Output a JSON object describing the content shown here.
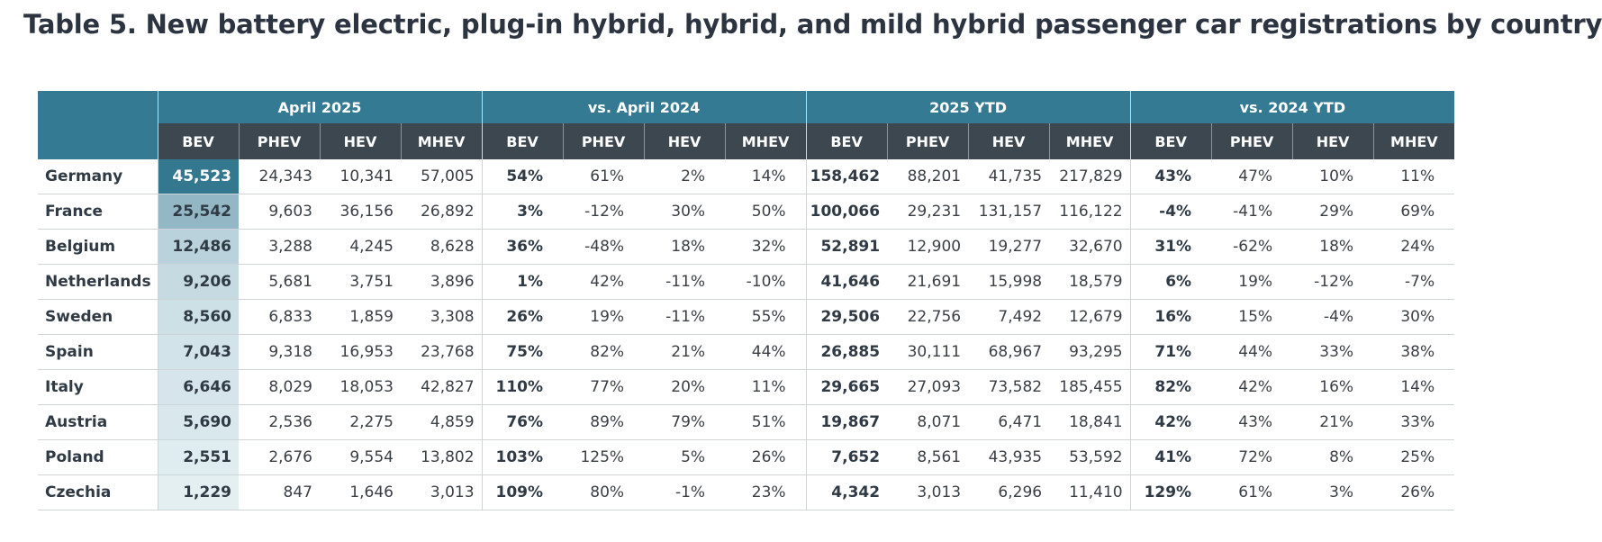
{
  "title": "Table 5. New battery electric, plug-in hybrid, hybrid, and mild hybrid passenger car registrations by country",
  "table": {
    "groups": [
      "April 2025",
      "vs. April 2024",
      "2025 YTD",
      "vs. 2024 YTD"
    ],
    "subheaders": [
      "BEV",
      "PHEV",
      "HEV",
      "MHEV",
      "BEV",
      "PHEV",
      "HEV",
      "MHEV",
      "BEV",
      "PHEV",
      "HEV",
      "MHEV",
      "BEV",
      "PHEV",
      "HEV",
      "MHEV"
    ],
    "rows": [
      [
        "Germany",
        "45,523",
        "24,343",
        "10,341",
        "57,005",
        "54%",
        "61%",
        "2%",
        "14%",
        "158,462",
        "88,201",
        "41,735",
        "217,829",
        "43%",
        "47%",
        "10%",
        "11%"
      ],
      [
        "France",
        "25,542",
        "9,603",
        "36,156",
        "26,892",
        "3%",
        "-12%",
        "30%",
        "50%",
        "100,066",
        "29,231",
        "131,157",
        "116,122",
        "-4%",
        "-41%",
        "29%",
        "69%"
      ],
      [
        "Belgium",
        "12,486",
        "3,288",
        "4,245",
        "8,628",
        "36%",
        "-48%",
        "18%",
        "32%",
        "52,891",
        "12,900",
        "19,277",
        "32,670",
        "31%",
        "-62%",
        "18%",
        "24%"
      ],
      [
        "Netherlands",
        "9,206",
        "5,681",
        "3,751",
        "3,896",
        "1%",
        "42%",
        "-11%",
        "-10%",
        "41,646",
        "21,691",
        "15,998",
        "18,579",
        "6%",
        "19%",
        "-12%",
        "-7%"
      ],
      [
        "Sweden",
        "8,560",
        "6,833",
        "1,859",
        "3,308",
        "26%",
        "19%",
        "-11%",
        "55%",
        "29,506",
        "22,756",
        "7,492",
        "12,679",
        "16%",
        "15%",
        "-4%",
        "30%"
      ],
      [
        "Spain",
        "7,043",
        "9,318",
        "16,953",
        "23,768",
        "75%",
        "82%",
        "21%",
        "44%",
        "26,885",
        "30,111",
        "68,967",
        "93,295",
        "71%",
        "44%",
        "33%",
        "38%"
      ],
      [
        "Italy",
        "6,646",
        "8,029",
        "18,053",
        "42,827",
        "110%",
        "77%",
        "20%",
        "11%",
        "29,665",
        "27,093",
        "73,582",
        "185,455",
        "82%",
        "42%",
        "16%",
        "14%"
      ],
      [
        "Austria",
        "5,690",
        "2,536",
        "2,275",
        "4,859",
        "76%",
        "89%",
        "79%",
        "51%",
        "19,867",
        "8,071",
        "6,471",
        "18,841",
        "42%",
        "43%",
        "21%",
        "33%"
      ],
      [
        "Poland",
        "2,551",
        "2,676",
        "9,554",
        "13,802",
        "103%",
        "125%",
        "5%",
        "26%",
        "7,652",
        "8,561",
        "43,935",
        "53,592",
        "41%",
        "72%",
        "8%",
        "25%"
      ],
      [
        "Czechia",
        "1,229",
        "847",
        "1,646",
        "3,013",
        "109%",
        "80%",
        "-1%",
        "23%",
        "4,342",
        "3,013",
        "6,296",
        "11,410",
        "129%",
        "61%",
        "3%",
        "26%"
      ]
    ]
  }
}
